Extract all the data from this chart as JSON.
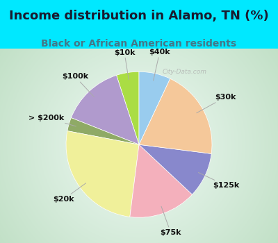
{
  "title": "Income distribution in Alamo, TN (%)",
  "subtitle": "Black or African American residents",
  "labels": [
    "$10k",
    "$100k",
    "> $200k",
    "$20k",
    "$75k",
    "$125k",
    "$30k",
    "$40k"
  ],
  "values": [
    5,
    14,
    3,
    26,
    15,
    10,
    20,
    7
  ],
  "colors": [
    "#aadd44",
    "#b09acd",
    "#8faa66",
    "#f0f09a",
    "#f4b0bc",
    "#8888cc",
    "#f5c89a",
    "#99ccee"
  ],
  "bg_cyan": "#00e8ff",
  "title_color": "#1a1a2e",
  "subtitle_color": "#447788",
  "title_fontsize": 13,
  "subtitle_fontsize": 10,
  "label_fontsize": 8,
  "startangle": 90,
  "watermark": "City-Data.com"
}
